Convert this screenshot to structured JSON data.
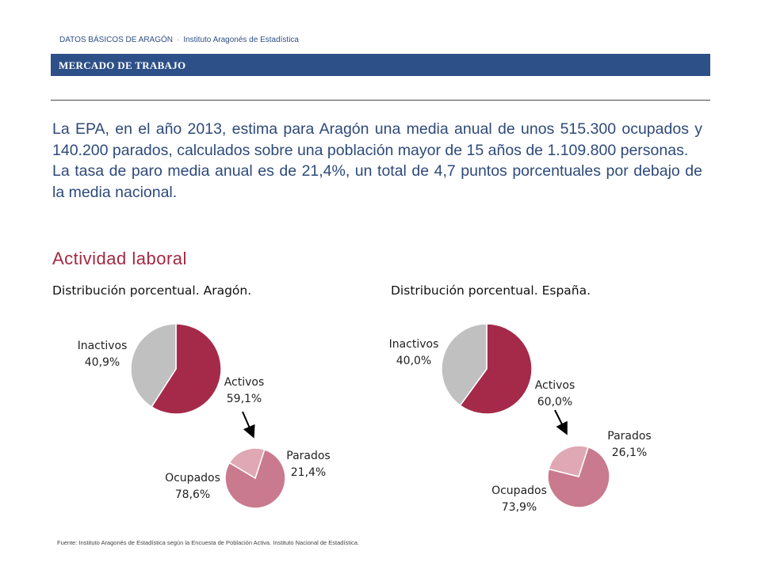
{
  "header": {
    "publication": "DATOS BÁSICOS DE ARAGÓN",
    "separator": "·",
    "institute": "Instituto Aragonés de Estadística",
    "section": "MERCADO DE TRABAJO"
  },
  "intro": {
    "paragraph1": "La EPA, en el año 2013, estima para Aragón una media anual de unos 515.300 ocupados y 140.200 parados, calculados sobre una población mayor de 15 años de 1.109.800 personas.",
    "paragraph2": "La tasa de paro media anual es de 21,4%, un total de 4,7 puntos porcentuales por debajo de la media nacional."
  },
  "section_title": "Actividad laboral",
  "colors": {
    "activos": "#a52a4a",
    "inactivos": "#c0c0c0",
    "ocupados": "#c97a8e",
    "parados": "#e0a8b4",
    "banner": "#2e5088",
    "title": "#a3283f"
  },
  "chart_data": [
    {
      "type": "pie",
      "title": "Distribución porcentual. Aragón.",
      "slices": [
        {
          "label": "Activos",
          "value": 59.1,
          "display": "59,1%"
        },
        {
          "label": "Inactivos",
          "value": 40.9,
          "display": "40,9%"
        }
      ]
    },
    {
      "type": "pie",
      "title": "Distribución porcentual. Aragón.",
      "subset_of": "Activos",
      "slices": [
        {
          "label": "Ocupados",
          "value": 78.6,
          "display": "78,6%"
        },
        {
          "label": "Parados",
          "value": 21.4,
          "display": "21,4%"
        }
      ]
    },
    {
      "type": "pie",
      "title": "Distribución porcentual. España.",
      "slices": [
        {
          "label": "Activos",
          "value": 60.0,
          "display": "60,0%"
        },
        {
          "label": "Inactivos",
          "value": 40.0,
          "display": "40,0%"
        }
      ]
    },
    {
      "type": "pie",
      "title": "Distribución porcentual. España.",
      "subset_of": "Activos",
      "slices": [
        {
          "label": "Ocupados",
          "value": 73.9,
          "display": "73,9%"
        },
        {
          "label": "Parados",
          "value": 26.1,
          "display": "26,1%"
        }
      ]
    }
  ],
  "footer": "Fuente: Instituto Aragonés de Estadística según la Encuesta de Población Activa. Instituto Nacional de Estadística."
}
